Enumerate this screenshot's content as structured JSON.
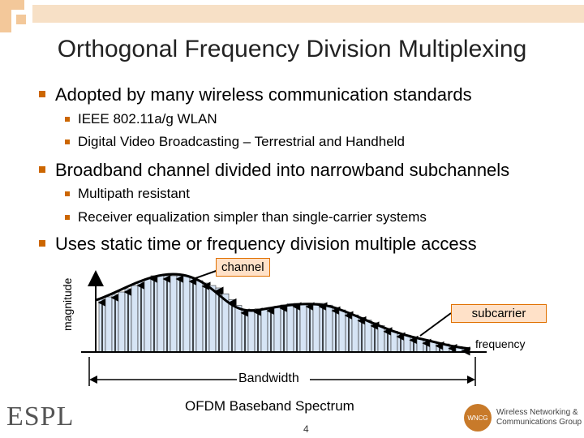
{
  "title": "Orthogonal Frequency Division Multiplexing",
  "bullets": [
    {
      "text": "Adopted by many wireless communication standards",
      "sub": [
        "IEEE 802.11a/g WLAN",
        "Digital Video Broadcasting – Terrestrial and Handheld"
      ]
    },
    {
      "text": "Broadband channel divided into narrowband subchannels",
      "sub": [
        "Multipath resistant",
        "Receiver equalization simpler than single-carrier systems"
      ]
    },
    {
      "text": "Uses static time or frequency division multiple access"
    }
  ],
  "figure": {
    "channel_label": "channel",
    "subcarrier_label": "subcarrier",
    "frequency_label": "frequency",
    "magnitude_label": "magnitude",
    "bandwidth_label": "Bandwidth",
    "caption": "OFDM Baseband Spectrum"
  },
  "footer": {
    "page": "4",
    "logo_left": "ESPL",
    "logo_right_line1": "Wireless Networking &",
    "logo_right_line2": "Communications Group",
    "logo_right_badge": "WNCG"
  },
  "colors": {
    "accent": "#cc6600",
    "box_fill": "#ffe1c8",
    "bar_fill": "#d6e4f5"
  }
}
